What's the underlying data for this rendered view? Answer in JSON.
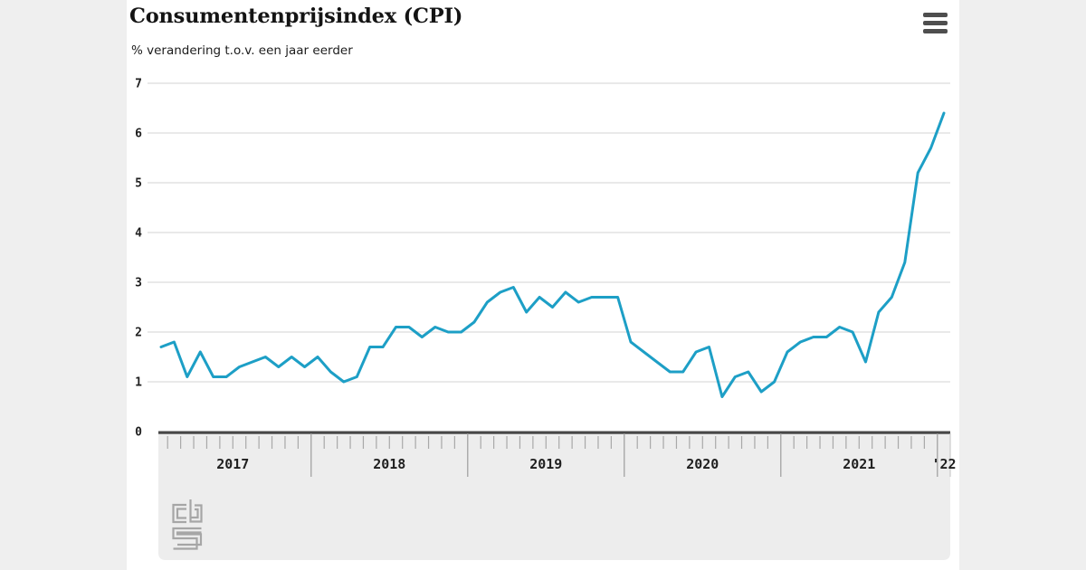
{
  "header": {
    "title": "Consumentenprijsindex (CPI)",
    "subtitle": "% verandering t.o.v. een jaar eerder",
    "menu_label": "Menu"
  },
  "branding": {
    "logo": "cbs-logo"
  },
  "chart_data": {
    "type": "line",
    "title": "Consumentenprijsindex (CPI)",
    "subtitle": "% verandering t.o.v. een jaar eerder",
    "xlabel": "",
    "ylabel": "% verandering t.o.v. een jaar eerder",
    "ylim": [
      0,
      7
    ],
    "yticks": [
      0,
      1,
      2,
      3,
      4,
      5,
      6,
      7
    ],
    "grid": true,
    "legend_position": "none",
    "line_color": "#1d9fc6",
    "x_unit": "month",
    "x_range": [
      "2017-01",
      "2022-01"
    ],
    "year_labels": [
      "2017",
      "2018",
      "2019",
      "2020",
      "2021",
      "'22"
    ],
    "series": [
      {
        "name": "CPI, % verandering t.o.v. een jaar eerder",
        "values": [
          1.7,
          1.8,
          1.1,
          1.6,
          1.1,
          1.1,
          1.3,
          1.4,
          1.5,
          1.3,
          1.5,
          1.3,
          1.5,
          1.2,
          1.0,
          1.1,
          1.7,
          1.7,
          2.1,
          2.1,
          1.9,
          2.1,
          2.0,
          2.0,
          2.2,
          2.6,
          2.8,
          2.9,
          2.4,
          2.7,
          2.5,
          2.8,
          2.6,
          2.7,
          2.7,
          2.7,
          1.8,
          1.6,
          1.4,
          1.2,
          1.2,
          1.6,
          1.7,
          0.7,
          1.1,
          1.2,
          0.8,
          1.0,
          1.6,
          1.8,
          1.9,
          1.9,
          2.1,
          2.0,
          1.4,
          2.4,
          2.7,
          3.4,
          5.2,
          5.7,
          6.4
        ]
      }
    ]
  }
}
